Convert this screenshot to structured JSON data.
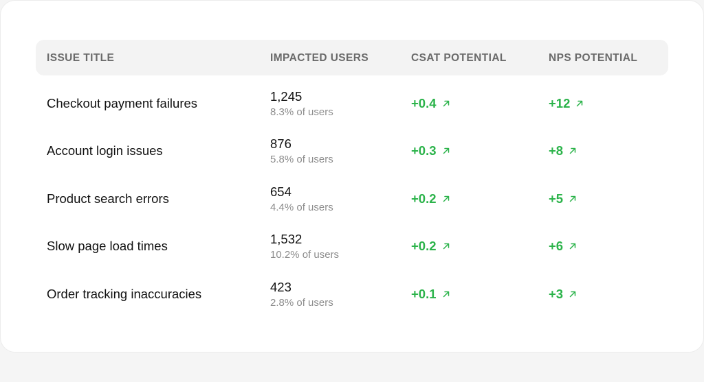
{
  "header": {
    "issue_title": "ISSUE TITLE",
    "impacted_users": "IMPACTED USERS",
    "csat_potential": "CSAT POTENTIAL",
    "nps_potential": "NPS POTENTIAL"
  },
  "colors": {
    "positive": "#2bb34a",
    "muted": "#8c8c8c",
    "header_bg": "#f3f3f3"
  },
  "rows": [
    {
      "title": "Checkout payment failures",
      "users": "1,245",
      "pct": "8.3% of users",
      "csat": "+0.4",
      "nps": "+12"
    },
    {
      "title": "Account login issues",
      "users": "876",
      "pct": "5.8% of users",
      "csat": "+0.3",
      "nps": "+8"
    },
    {
      "title": "Product search errors",
      "users": "654",
      "pct": "4.4% of users",
      "csat": "+0.2",
      "nps": "+5"
    },
    {
      "title": "Slow page load times",
      "users": "1,532",
      "pct": "10.2% of users",
      "csat": "+0.2",
      "nps": "+6"
    },
    {
      "title": "Order tracking inaccuracies",
      "users": "423",
      "pct": "2.8% of users",
      "csat": "+0.1",
      "nps": "+3"
    }
  ],
  "icons": {
    "trend": "arrow-up-right-icon"
  }
}
